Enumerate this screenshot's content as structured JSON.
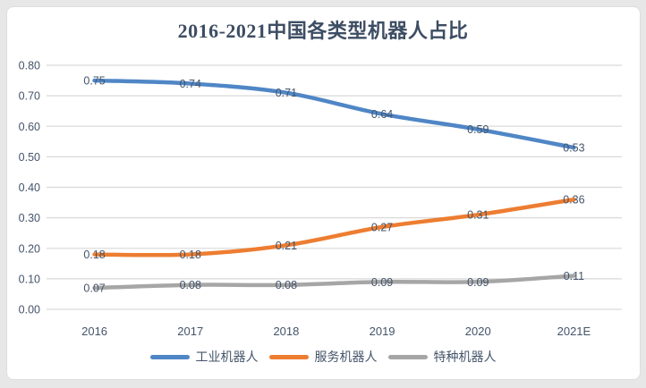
{
  "chart_data": {
    "type": "line",
    "title": "2016-2021中国各类型机器人占比",
    "categories": [
      "2016",
      "2017",
      "2018",
      "2019",
      "2020",
      "2021E"
    ],
    "series": [
      {
        "name": "工业机器人",
        "color": "#4f86c6",
        "values": [
          0.75,
          0.74,
          0.71,
          0.64,
          0.59,
          0.53
        ]
      },
      {
        "name": "服务机器人",
        "color": "#ed7d31",
        "values": [
          0.18,
          0.18,
          0.21,
          0.27,
          0.31,
          0.36
        ]
      },
      {
        "name": "特种机器人",
        "color": "#a6a6a6",
        "values": [
          0.07,
          0.08,
          0.08,
          0.09,
          0.09,
          0.11
        ]
      }
    ],
    "ylim": [
      0,
      0.8
    ],
    "y_tick_step": 0.1,
    "y_tick_labels": [
      "0.00",
      "0.10",
      "0.20",
      "0.30",
      "0.40",
      "0.50",
      "0.60",
      "0.70",
      "0.80"
    ],
    "grid": true,
    "legend_position": "bottom",
    "data_labels": true,
    "smooth_lines": true,
    "colors": {
      "title": "#3d4d63",
      "axis_labels": "#44546a",
      "data_labels": "#44546a",
      "gridline": "#d9d9d9",
      "card_background": "#ffffff",
      "page_background": "#e7e7e7"
    }
  }
}
